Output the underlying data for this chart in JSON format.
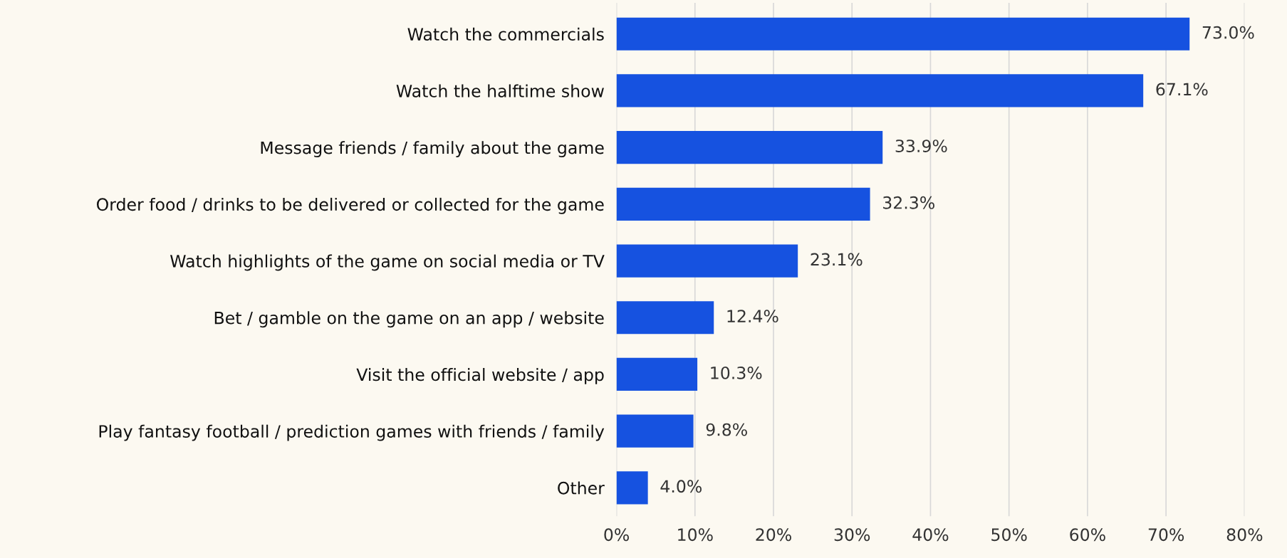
{
  "chart_data": {
    "type": "bar",
    "orientation": "horizontal",
    "categories": [
      "Watch the commercials",
      "Watch the halftime show",
      "Message friends / family about the game",
      "Order food / drinks to be delivered or collected for the game",
      "Watch highlights of the game on social media or TV",
      "Bet / gamble on the game on an app / website",
      "Visit the official website / app",
      "Play fantasy football / prediction games with friends / family",
      "Other"
    ],
    "values": [
      73.0,
      67.1,
      33.9,
      32.3,
      23.1,
      12.4,
      10.3,
      9.8,
      4.0
    ],
    "color": "#1652e0",
    "value_labels": [
      "73.0%",
      "67.1%",
      "33.9%",
      "32.3%",
      "23.1%",
      "12.4%",
      "10.3%",
      "9.8%",
      "4.0%"
    ],
    "xlim": [
      0,
      80
    ],
    "xticks": [
      {
        "value": 0,
        "label": "0%"
      },
      {
        "value": 10,
        "label": "10%"
      },
      {
        "value": 20,
        "label": "20%"
      },
      {
        "value": 30,
        "label": "30%"
      },
      {
        "value": 40,
        "label": "40%"
      },
      {
        "value": 50,
        "label": "50%"
      },
      {
        "value": 60,
        "label": "60%"
      },
      {
        "value": 70,
        "label": "70%"
      },
      {
        "value": 80,
        "label": "80%"
      }
    ],
    "grid": "x",
    "legend": false
  }
}
